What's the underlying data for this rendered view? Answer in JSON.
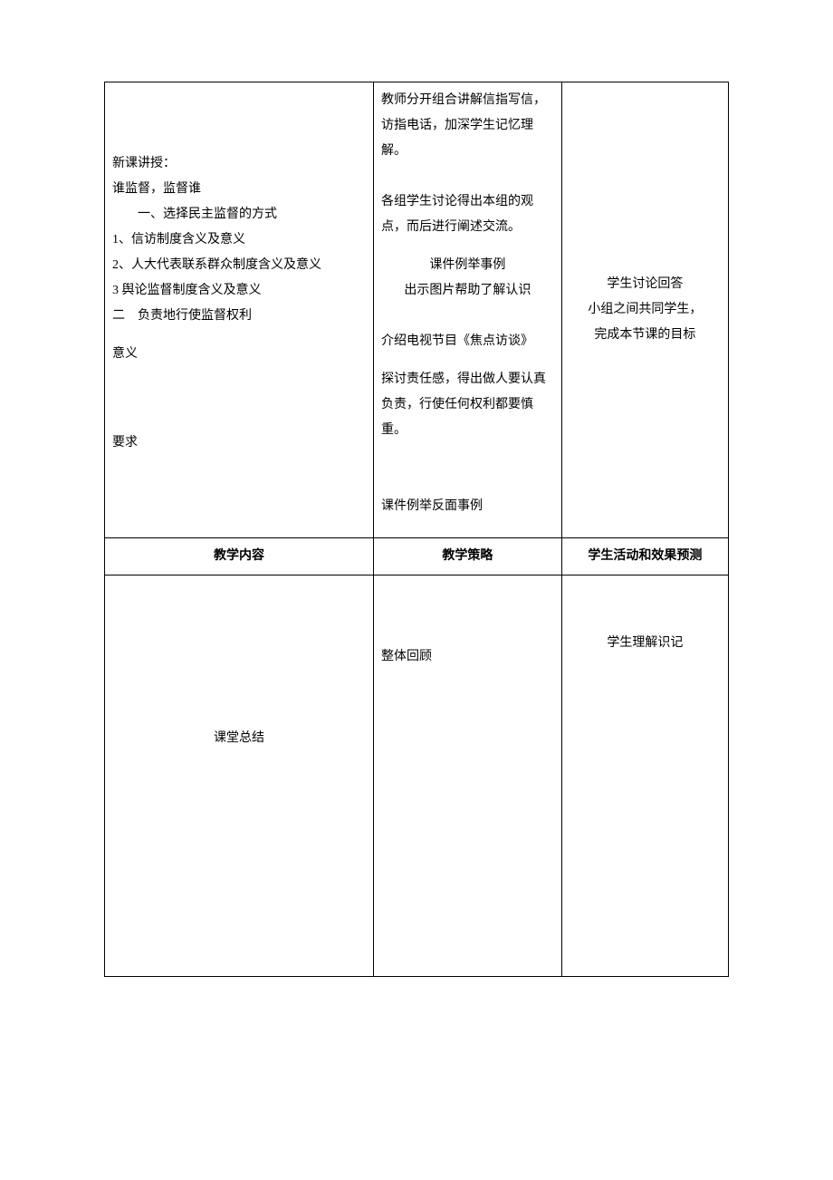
{
  "tableHeader": {
    "col1": "教学内容",
    "col2": "教学策略",
    "col3": "学生活动和效果预测"
  },
  "row1": {
    "content": {
      "line1": "新课讲授：",
      "line2": "谁监督，监督谁",
      "line3": "一、选择民主监督的方式",
      "line4": "1、信访制度含义及意义",
      "line5": "2、人大代表联系群众制度含义及意义",
      "line6": "3 舆论监督制度含义及意义",
      "line7": "二　负责地行使监督权利",
      "line8": "意义",
      "line9": "要求"
    },
    "strategy": {
      "p1": "教师分开组合讲解信指写信，访指电话，加深学生记忆理解。",
      "p2": "各组学生讨论得出本组的观点，而后进行阐述交流。",
      "p3a": "课件例举事例",
      "p3b": "出示图片帮助了解认识",
      "p4": "介绍电视节目《焦点访谈》",
      "p5": "探讨责任感，得出做人要认真负责，行使任何权利都要慎重。",
      "p6": "课件例举反面事例"
    },
    "result": {
      "line1": "学生讨论回答",
      "line2": "小组之间共同学生，",
      "line3": "完成本节课的目标"
    }
  },
  "row2": {
    "content": "课堂总结",
    "strategy": "整体回顾",
    "result": "学生理解识记"
  }
}
